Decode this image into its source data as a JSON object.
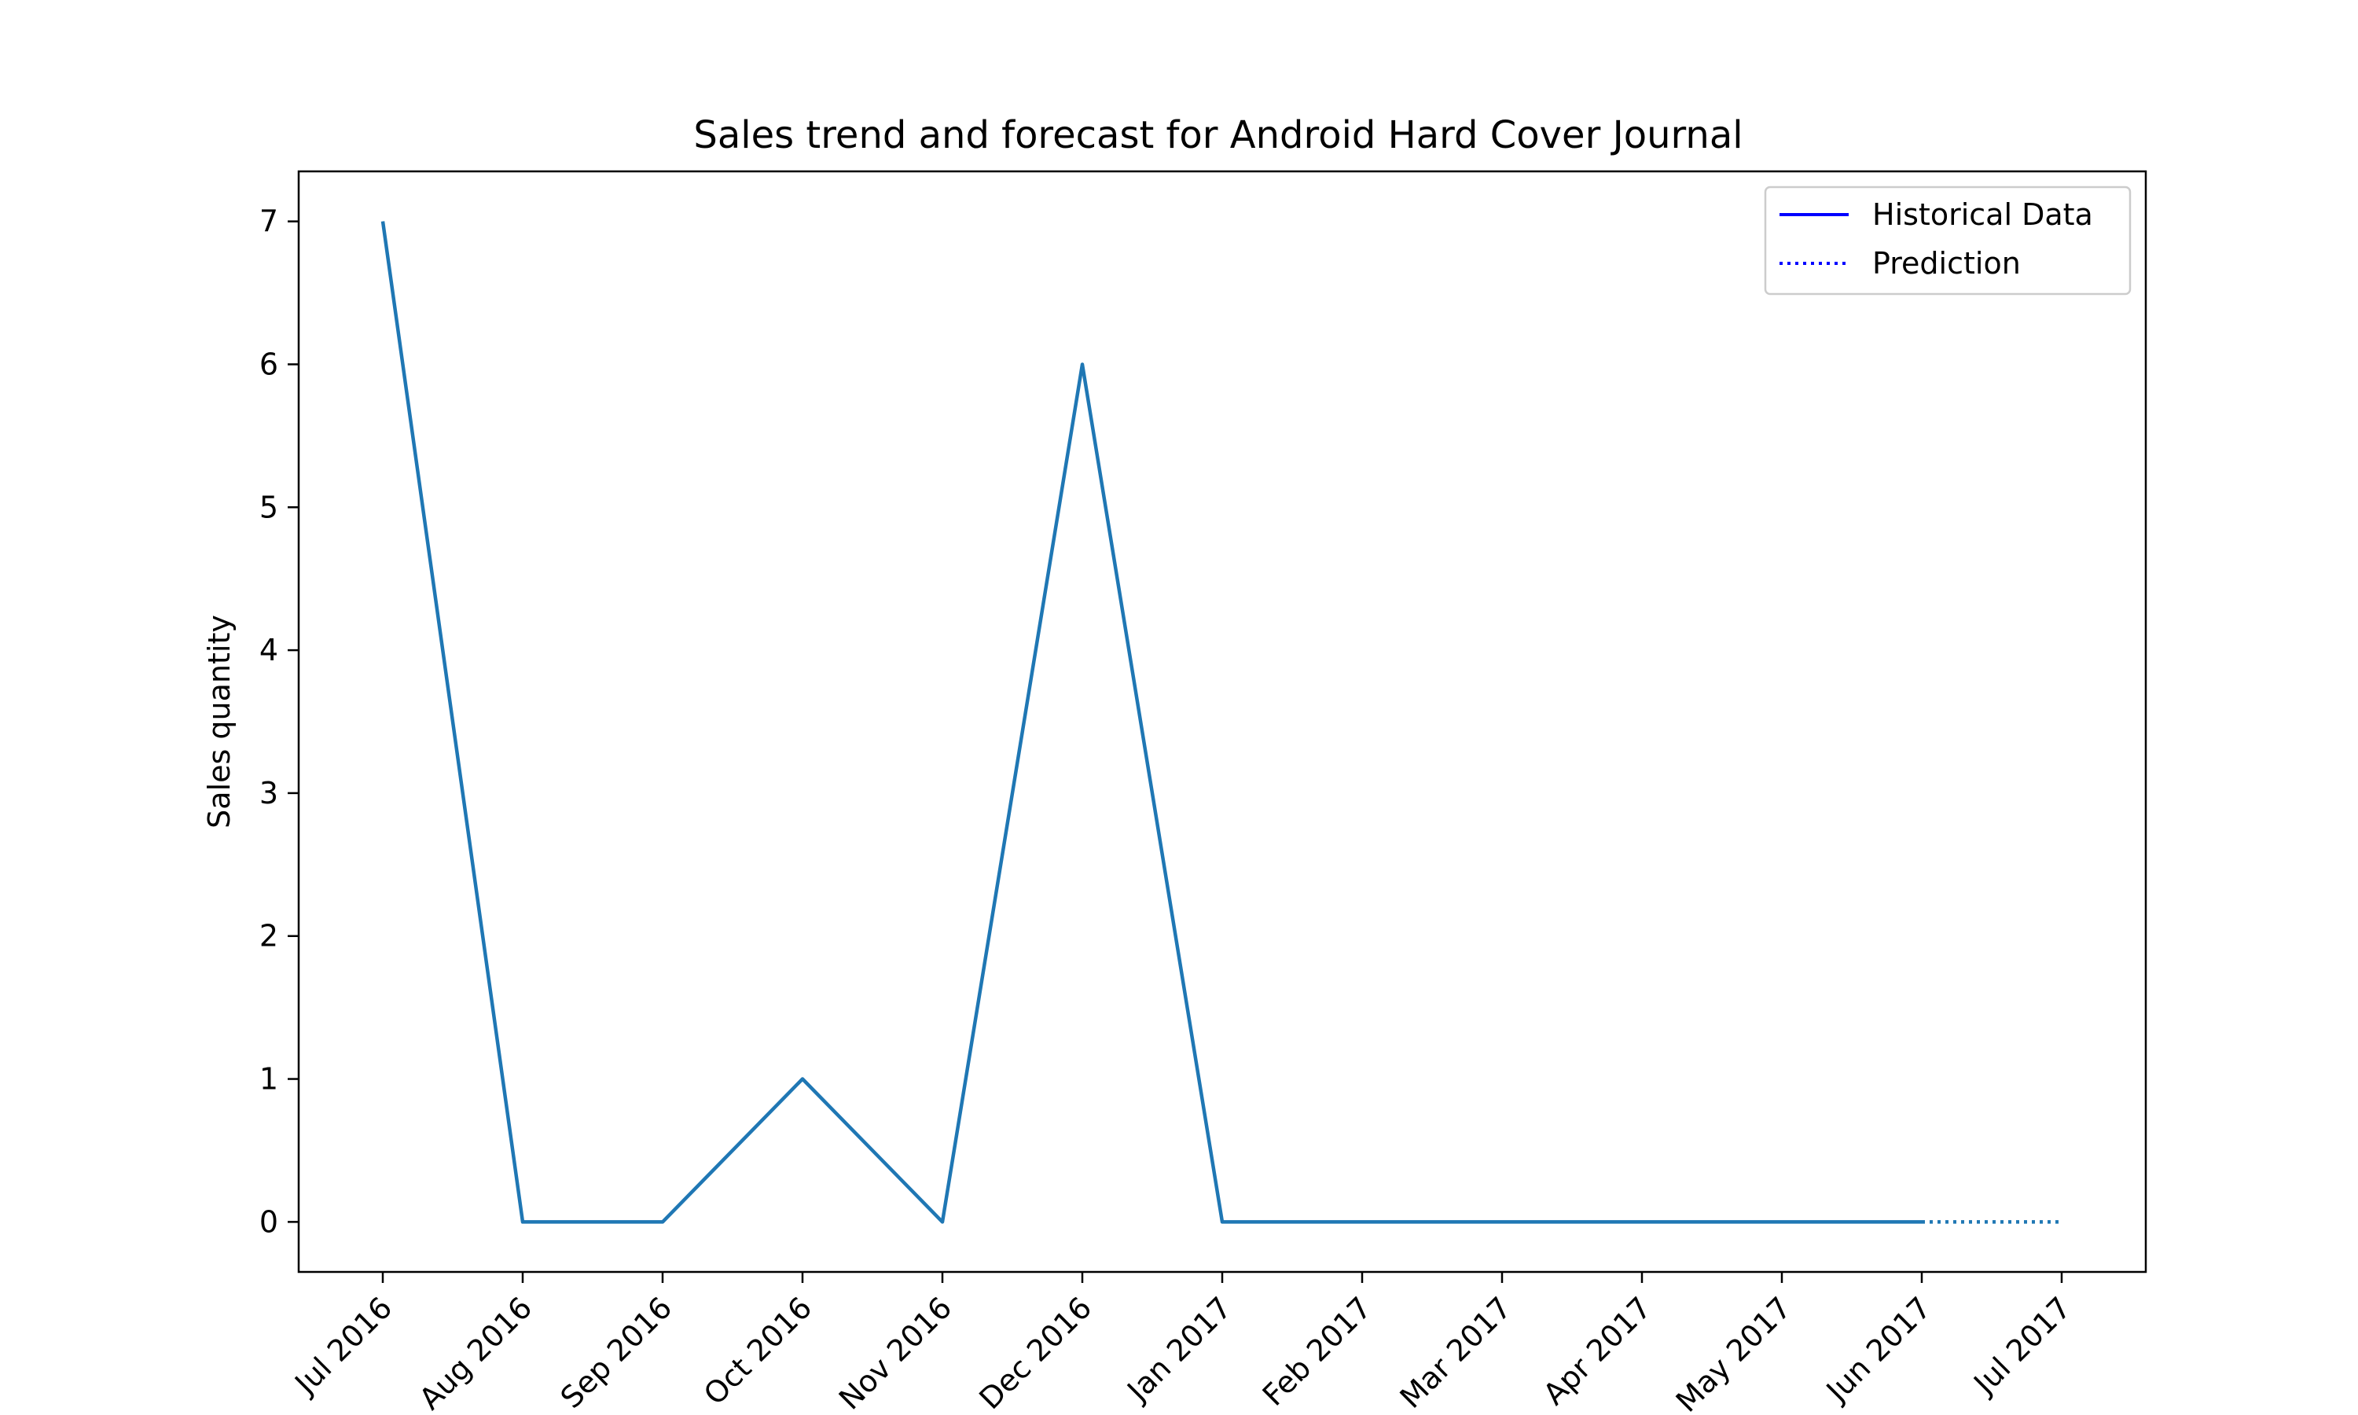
{
  "chart_data": {
    "type": "line",
    "title": "Sales trend and forecast for Android Hard Cover Journal",
    "xlabel": "",
    "ylabel": "Sales quantity",
    "x_ticks": [
      "Jul 2016",
      "Aug 2016",
      "Sep 2016",
      "Oct 2016",
      "Nov 2016",
      "Dec 2016",
      "Jan 2017",
      "Feb 2017",
      "Mar 2017",
      "Apr 2017",
      "May 2017",
      "Jun 2017",
      "Jul 2017"
    ],
    "y_ticks": [
      "0",
      "1",
      "2",
      "3",
      "4",
      "5",
      "6",
      "7"
    ],
    "ylim": [
      -0.35,
      7.35
    ],
    "grid": false,
    "legend_position": "top-right",
    "series": [
      {
        "name": "Historical Data",
        "line_style": "solid",
        "color": "#1f77b4",
        "legend_color": "#0000ff",
        "x": [
          "Jul 2016",
          "Aug 2016",
          "Sep 2016",
          "Oct 2016",
          "Nov 2016",
          "Dec 2016",
          "Jan 2017",
          "Feb 2017",
          "Mar 2017",
          "Apr 2017",
          "May 2017",
          "Jun 2017"
        ],
        "values": [
          7,
          0,
          0,
          1,
          0,
          6,
          0,
          0,
          0,
          0,
          0,
          0
        ]
      },
      {
        "name": "Prediction",
        "line_style": "dotted",
        "color": "#1f77b4",
        "legend_color": "#0000ff",
        "x": [
          "Jun 2017",
          "Jul 2017"
        ],
        "values": [
          0,
          0
        ]
      }
    ]
  }
}
